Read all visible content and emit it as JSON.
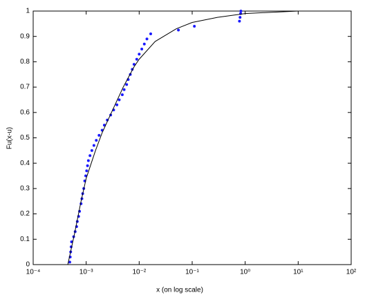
{
  "chart_data": {
    "type": "scatter",
    "x_label": "x (on log scale)",
    "y_label": "Fu(x-u)",
    "x_log": true,
    "xlim": [
      0.0001,
      100
    ],
    "ylim": [
      0,
      1
    ],
    "xticks": [
      {
        "value": 0.0001,
        "label": "10⁻⁴"
      },
      {
        "value": 0.001,
        "label": "10⁻³"
      },
      {
        "value": 0.01,
        "label": "10⁻²"
      },
      {
        "value": 0.1,
        "label": "10⁻¹"
      },
      {
        "value": 1,
        "label": "10⁰"
      },
      {
        "value": 10,
        "label": "10¹"
      },
      {
        "value": 100,
        "label": "10²"
      }
    ],
    "yticks": [
      0,
      0.1,
      0.2,
      0.3,
      0.4,
      0.5,
      0.6,
      0.7,
      0.8,
      0.9,
      1
    ],
    "series": [
      {
        "mode": "markers",
        "color": "#1a1aff",
        "x": [
          0.00049,
          0.0005,
          0.00051,
          0.00052,
          0.00053,
          0.00058,
          0.00062,
          0.00066,
          0.00068,
          0.00072,
          0.00075,
          0.0008,
          0.00083,
          0.00086,
          0.0009,
          0.00094,
          0.00098,
          0.00102,
          0.00106,
          0.0011,
          0.00118,
          0.00128,
          0.0014,
          0.00155,
          0.00175,
          0.002,
          0.0022,
          0.0025,
          0.0029,
          0.0033,
          0.0038,
          0.0042,
          0.0048,
          0.0052,
          0.0058,
          0.0062,
          0.0068,
          0.0074,
          0.008,
          0.009,
          0.01,
          0.0112,
          0.0125,
          0.014,
          0.0165,
          0.055,
          0.11,
          0.78,
          0.8,
          0.82,
          0.83
        ],
        "values": [
          0.01,
          0.03,
          0.05,
          0.07,
          0.09,
          0.11,
          0.13,
          0.15,
          0.17,
          0.19,
          0.21,
          0.24,
          0.26,
          0.28,
          0.3,
          0.33,
          0.35,
          0.37,
          0.39,
          0.41,
          0.43,
          0.45,
          0.47,
          0.49,
          0.51,
          0.53,
          0.55,
          0.57,
          0.59,
          0.61,
          0.63,
          0.65,
          0.67,
          0.69,
          0.71,
          0.73,
          0.75,
          0.77,
          0.79,
          0.81,
          0.83,
          0.85,
          0.87,
          0.89,
          0.91,
          0.925,
          0.94,
          0.96,
          0.975,
          0.99,
          1.0
        ]
      },
      {
        "mode": "line",
        "color": "#000000",
        "x": [
          0.00045,
          0.0006,
          0.0008,
          0.001,
          0.0015,
          0.002,
          0.003,
          0.005,
          0.008,
          0.01,
          0.02,
          0.05,
          0.1,
          0.3,
          1,
          3,
          10
        ],
        "values": [
          0,
          0.12,
          0.25,
          0.34,
          0.45,
          0.52,
          0.6,
          0.7,
          0.78,
          0.81,
          0.88,
          0.93,
          0.955,
          0.975,
          0.99,
          0.995,
          1.0
        ]
      }
    ]
  }
}
